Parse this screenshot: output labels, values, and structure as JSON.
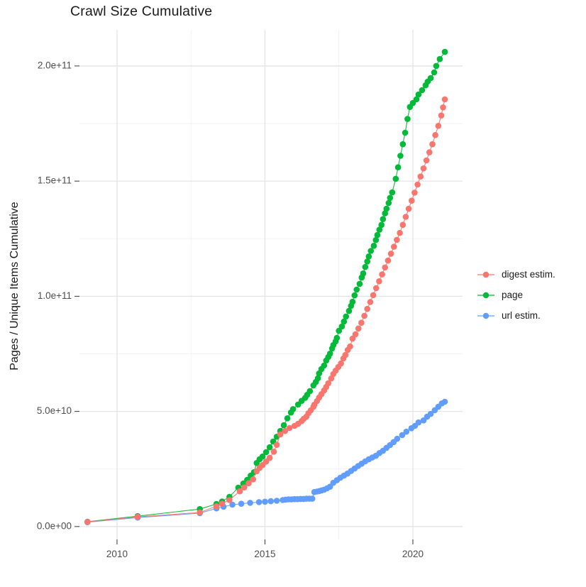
{
  "chart_data": {
    "type": "scatter",
    "title": "Crawl Size Cumulative",
    "xlabel": "",
    "ylabel": "Pages / Unique Items Cumulative",
    "legend_position": "right",
    "grid": true,
    "xlim": [
      2008.73,
      2021.68
    ],
    "ylim_e9": [
      -5.6,
      215.7
    ],
    "x_ticks": {
      "major": [
        2010,
        2015,
        2020
      ],
      "minor": [
        2012.5,
        2017.5
      ],
      "labels": [
        "2010",
        "2015",
        "2020"
      ]
    },
    "y_ticks": {
      "major_e9": [
        0,
        50,
        100,
        150,
        200
      ],
      "minor_e9": [
        25,
        75,
        125,
        175
      ],
      "labels": [
        "0.0e+00",
        "5.0e+10",
        "1.0e+11",
        "1.5e+11",
        "2.0e+11"
      ]
    },
    "points_unit": "each point = [decimal year, cumulative count in billions (1e9)]",
    "series": [
      {
        "name": "digest estim.",
        "color": "#F8766D",
        "points": [
          [
            2009.0,
            2.0
          ],
          [
            2010.7,
            4.2
          ],
          [
            2012.8,
            6.1
          ],
          [
            2013.36,
            8.8
          ],
          [
            2013.55,
            9.9
          ],
          [
            2013.8,
            11.5
          ],
          [
            2014.15,
            15.3
          ],
          [
            2014.3,
            17.0
          ],
          [
            2014.45,
            18.8
          ],
          [
            2014.6,
            20.5
          ],
          [
            2014.72,
            24.0
          ],
          [
            2014.82,
            25.5
          ],
          [
            2014.92,
            26.7
          ],
          [
            2015.04,
            28.2
          ],
          [
            2015.16,
            29.8
          ],
          [
            2015.3,
            32.5
          ],
          [
            2015.4,
            35.5
          ],
          [
            2015.52,
            40.0
          ],
          [
            2015.68,
            41.5
          ],
          [
            2015.83,
            42.8
          ],
          [
            2016.0,
            43.7
          ],
          [
            2016.12,
            44.6
          ],
          [
            2016.24,
            45.8
          ],
          [
            2016.31,
            46.8
          ],
          [
            2016.4,
            47.7
          ],
          [
            2016.47,
            49.2
          ],
          [
            2016.55,
            50.5
          ],
          [
            2016.64,
            52.0
          ],
          [
            2016.67,
            52.9
          ],
          [
            2016.76,
            54.5
          ],
          [
            2016.83,
            56.0
          ],
          [
            2016.91,
            57.5
          ],
          [
            2017.0,
            59.1
          ],
          [
            2017.07,
            60.6
          ],
          [
            2017.14,
            62.2
          ],
          [
            2017.24,
            64.3
          ],
          [
            2017.31,
            66.2
          ],
          [
            2017.39,
            67.7
          ],
          [
            2017.48,
            69.3
          ],
          [
            2017.57,
            70.8
          ],
          [
            2017.65,
            73.0
          ],
          [
            2017.72,
            74.5
          ],
          [
            2017.8,
            76.7
          ],
          [
            2017.88,
            78.2
          ],
          [
            2017.96,
            81.6
          ],
          [
            2018.06,
            83.5
          ],
          [
            2018.16,
            86.0
          ],
          [
            2018.26,
            88.5
          ],
          [
            2018.36,
            91.5
          ],
          [
            2018.46,
            94.5
          ],
          [
            2018.56,
            97.5
          ],
          [
            2018.66,
            100.5
          ],
          [
            2018.76,
            103.5
          ],
          [
            2018.86,
            106.5
          ],
          [
            2018.96,
            109.5
          ],
          [
            2019.06,
            112.5
          ],
          [
            2019.16,
            115.5
          ],
          [
            2019.26,
            118.5
          ],
          [
            2019.36,
            121.5
          ],
          [
            2019.46,
            124.5
          ],
          [
            2019.56,
            127.5
          ],
          [
            2019.66,
            131.0
          ],
          [
            2019.76,
            134.5
          ],
          [
            2019.86,
            138.0
          ],
          [
            2019.96,
            141.5
          ],
          [
            2020.06,
            145.0
          ],
          [
            2020.16,
            148.5
          ],
          [
            2020.26,
            152.0
          ],
          [
            2020.36,
            155.5
          ],
          [
            2020.46,
            159.0
          ],
          [
            2020.56,
            162.5
          ],
          [
            2020.66,
            166.0
          ],
          [
            2020.76,
            170.0
          ],
          [
            2020.86,
            174.0
          ],
          [
            2020.96,
            178.5
          ],
          [
            2021.02,
            182.0
          ],
          [
            2021.08,
            185.5
          ]
        ]
      },
      {
        "name": "page",
        "color": "#00BA38",
        "points": [
          [
            2009.0,
            2.1
          ],
          [
            2010.7,
            4.5
          ],
          [
            2012.8,
            7.6
          ],
          [
            2013.36,
            9.8
          ],
          [
            2013.55,
            10.9
          ],
          [
            2013.8,
            12.9
          ],
          [
            2014.1,
            16.9
          ],
          [
            2014.27,
            18.7
          ],
          [
            2014.4,
            20.3
          ],
          [
            2014.52,
            22.1
          ],
          [
            2014.63,
            23.6
          ],
          [
            2014.72,
            27.6
          ],
          [
            2014.82,
            29.2
          ],
          [
            2014.92,
            30.4
          ],
          [
            2015.04,
            32.3
          ],
          [
            2015.16,
            34.4
          ],
          [
            2015.28,
            36.9
          ],
          [
            2015.4,
            39.0
          ],
          [
            2015.52,
            41.5
          ],
          [
            2015.64,
            44.0
          ],
          [
            2015.76,
            47.0
          ],
          [
            2015.88,
            49.5
          ],
          [
            2015.95,
            51.0
          ],
          [
            2016.12,
            53.0
          ],
          [
            2016.24,
            54.6
          ],
          [
            2016.36,
            55.9
          ],
          [
            2016.43,
            57.2
          ],
          [
            2016.52,
            58.8
          ],
          [
            2016.64,
            61.3
          ],
          [
            2016.72,
            62.8
          ],
          [
            2016.79,
            64.4
          ],
          [
            2016.83,
            66.5
          ],
          [
            2016.91,
            68.4
          ],
          [
            2017.0,
            69.9
          ],
          [
            2017.07,
            72.1
          ],
          [
            2017.14,
            73.6
          ],
          [
            2017.2,
            75.1
          ],
          [
            2017.27,
            77.3
          ],
          [
            2017.31,
            78.8
          ],
          [
            2017.39,
            80.4
          ],
          [
            2017.43,
            81.9
          ],
          [
            2017.5,
            85.0
          ],
          [
            2017.6,
            86.9
          ],
          [
            2017.67,
            89.0
          ],
          [
            2017.74,
            91.2
          ],
          [
            2017.84,
            93.6
          ],
          [
            2017.91,
            95.8
          ],
          [
            2017.96,
            97.6
          ],
          [
            2018.03,
            100.4
          ],
          [
            2018.1,
            102.9
          ],
          [
            2018.2,
            105.4
          ],
          [
            2018.27,
            108.1
          ],
          [
            2018.32,
            109.9
          ],
          [
            2018.39,
            112.7
          ],
          [
            2018.46,
            115.1
          ],
          [
            2018.51,
            117.3
          ],
          [
            2018.58,
            119.7
          ],
          [
            2018.68,
            121.9
          ],
          [
            2018.75,
            124.4
          ],
          [
            2018.8,
            126.6
          ],
          [
            2018.87,
            128.9
          ],
          [
            2018.94,
            131.0
          ],
          [
            2018.99,
            133.5
          ],
          [
            2019.06,
            136.0
          ],
          [
            2019.11,
            138.0
          ],
          [
            2019.18,
            140.5
          ],
          [
            2019.23,
            142.7
          ],
          [
            2019.3,
            145.1
          ],
          [
            2019.42,
            151.0
          ],
          [
            2019.5,
            156.0
          ],
          [
            2019.58,
            161.0
          ],
          [
            2019.66,
            166.0
          ],
          [
            2019.74,
            171.0
          ],
          [
            2019.82,
            177.0
          ],
          [
            2019.9,
            182.2
          ],
          [
            2020.0,
            183.9
          ],
          [
            2020.12,
            185.5
          ],
          [
            2020.19,
            187.6
          ],
          [
            2020.31,
            189.5
          ],
          [
            2020.43,
            191.6
          ],
          [
            2020.5,
            193.2
          ],
          [
            2020.6,
            194.7
          ],
          [
            2020.72,
            197.2
          ],
          [
            2020.79,
            200.0
          ],
          [
            2020.91,
            203.0
          ],
          [
            2021.08,
            206.1
          ]
        ]
      },
      {
        "name": "url estim.",
        "color": "#619CFF",
        "points": [
          [
            2009.0,
            1.9
          ],
          [
            2010.7,
            3.9
          ],
          [
            2012.8,
            5.8
          ],
          [
            2013.36,
            7.9
          ],
          [
            2013.6,
            8.6
          ],
          [
            2013.9,
            9.5
          ],
          [
            2014.2,
            9.9
          ],
          [
            2014.5,
            10.3
          ],
          [
            2014.8,
            10.6
          ],
          [
            2015.0,
            10.8
          ],
          [
            2015.2,
            11.0
          ],
          [
            2015.4,
            11.2
          ],
          [
            2015.6,
            11.5
          ],
          [
            2015.7,
            11.7
          ],
          [
            2015.8,
            11.8
          ],
          [
            2015.9,
            11.8
          ],
          [
            2016.0,
            11.9
          ],
          [
            2016.1,
            11.9
          ],
          [
            2016.2,
            12.0
          ],
          [
            2016.3,
            12.0
          ],
          [
            2016.4,
            12.1
          ],
          [
            2016.5,
            12.1
          ],
          [
            2016.6,
            12.1
          ],
          [
            2016.67,
            15.0
          ],
          [
            2016.76,
            15.2
          ],
          [
            2016.83,
            15.4
          ],
          [
            2016.91,
            15.7
          ],
          [
            2017.0,
            16.0
          ],
          [
            2017.1,
            16.6
          ],
          [
            2017.2,
            17.3
          ],
          [
            2017.31,
            19.0
          ],
          [
            2017.43,
            20.1
          ],
          [
            2017.55,
            21.2
          ],
          [
            2017.67,
            22.1
          ],
          [
            2017.79,
            23.0
          ],
          [
            2017.91,
            24.1
          ],
          [
            2018.03,
            25.2
          ],
          [
            2018.15,
            26.3
          ],
          [
            2018.27,
            27.3
          ],
          [
            2018.39,
            28.3
          ],
          [
            2018.51,
            29.2
          ],
          [
            2018.63,
            30.0
          ],
          [
            2018.75,
            30.7
          ],
          [
            2018.87,
            31.9
          ],
          [
            2018.99,
            32.9
          ],
          [
            2019.11,
            34.2
          ],
          [
            2019.23,
            35.4
          ],
          [
            2019.35,
            36.7
          ],
          [
            2019.47,
            38.1
          ],
          [
            2019.64,
            39.7
          ],
          [
            2019.78,
            41.2
          ],
          [
            2019.95,
            42.7
          ],
          [
            2020.07,
            43.7
          ],
          [
            2020.19,
            45.2
          ],
          [
            2020.36,
            46.1
          ],
          [
            2020.48,
            47.7
          ],
          [
            2020.6,
            48.9
          ],
          [
            2020.74,
            50.5
          ],
          [
            2020.86,
            52.0
          ],
          [
            2020.98,
            53.5
          ],
          [
            2021.08,
            54.2
          ]
        ]
      }
    ],
    "style": {
      "grid_major_color": "#e4e4e4",
      "grid_minor_color": "#efefef",
      "tick_color": "#333333",
      "tick_label_color": "#4d4d4d",
      "point_radius": 4.3
    }
  }
}
